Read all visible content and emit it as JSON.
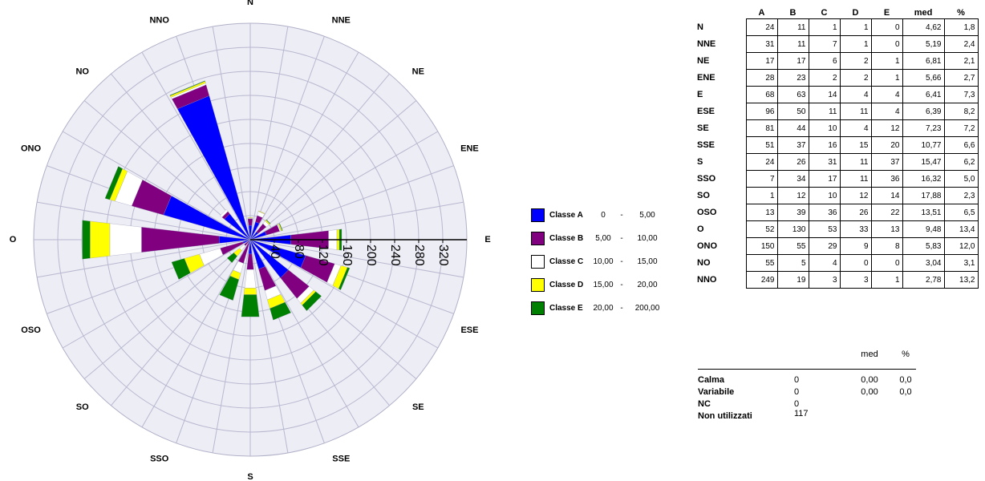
{
  "chart_data": {
    "type": "wind-rose",
    "directions": [
      "N",
      "NNE",
      "NE",
      "ENE",
      "E",
      "ESE",
      "SE",
      "SSE",
      "S",
      "SSO",
      "SO",
      "OSO",
      "O",
      "ONO",
      "NO",
      "NNO"
    ],
    "radial_ticks": [
      "40",
      "80",
      "120",
      "160",
      "200",
      "240",
      "280",
      "320"
    ],
    "radial_range": [
      0,
      360
    ],
    "grid": true,
    "series": [
      {
        "name": "Classe A",
        "color": "#0000ff",
        "values": [
          24,
          31,
          17,
          28,
          68,
          96,
          81,
          51,
          24,
          7,
          1,
          13,
          52,
          150,
          55,
          249
        ]
      },
      {
        "name": "Classe B",
        "color": "#800080",
        "values": [
          11,
          11,
          17,
          23,
          63,
          50,
          44,
          37,
          26,
          34,
          12,
          39,
          130,
          55,
          5,
          19
        ]
      },
      {
        "name": "Classe C",
        "color": "#ffffff",
        "values": [
          1,
          7,
          6,
          2,
          14,
          11,
          10,
          16,
          31,
          17,
          10,
          36,
          53,
          29,
          4,
          3
        ]
      },
      {
        "name": "Classe D",
        "color": "#ffff00",
        "values": [
          1,
          1,
          2,
          2,
          4,
          11,
          4,
          15,
          11,
          11,
          12,
          26,
          33,
          9,
          0,
          3
        ]
      },
      {
        "name": "Classe E",
        "color": "#008000",
        "values": [
          0,
          0,
          1,
          1,
          4,
          4,
          12,
          20,
          37,
          36,
          14,
          22,
          13,
          8,
          0,
          1
        ]
      }
    ]
  },
  "legend": [
    {
      "label": "Classe A",
      "min": "0",
      "max": "5,00",
      "color": "#0000ff"
    },
    {
      "label": "Classe B",
      "min": "5,00",
      "max": "10,00",
      "color": "#800080"
    },
    {
      "label": "Classe C",
      "min": "10,00",
      "max": "15,00",
      "color": "#ffffff"
    },
    {
      "label": "Classe D",
      "min": "15,00",
      "max": "20,00",
      "color": "#ffff00"
    },
    {
      "label": "Classe E",
      "min": "20,00",
      "max": "200,00",
      "color": "#008000"
    }
  ],
  "legend_dash": "-",
  "table": {
    "headers": [
      "A",
      "B",
      "C",
      "D",
      "E",
      "med",
      "%"
    ],
    "rows": [
      {
        "dir": "N",
        "A": "24",
        "B": "11",
        "C": "1",
        "D": "1",
        "E": "0",
        "med": "4,62",
        "pct": "1,8"
      },
      {
        "dir": "NNE",
        "A": "31",
        "B": "11",
        "C": "7",
        "D": "1",
        "E": "0",
        "med": "5,19",
        "pct": "2,4"
      },
      {
        "dir": "NE",
        "A": "17",
        "B": "17",
        "C": "6",
        "D": "2",
        "E": "1",
        "med": "6,81",
        "pct": "2,1"
      },
      {
        "dir": "ENE",
        "A": "28",
        "B": "23",
        "C": "2",
        "D": "2",
        "E": "1",
        "med": "5,66",
        "pct": "2,7"
      },
      {
        "dir": "E",
        "A": "68",
        "B": "63",
        "C": "14",
        "D": "4",
        "E": "4",
        "med": "6,41",
        "pct": "7,3"
      },
      {
        "dir": "ESE",
        "A": "96",
        "B": "50",
        "C": "11",
        "D": "11",
        "E": "4",
        "med": "6,39",
        "pct": "8,2"
      },
      {
        "dir": "SE",
        "A": "81",
        "B": "44",
        "C": "10",
        "D": "4",
        "E": "12",
        "med": "7,23",
        "pct": "7,2"
      },
      {
        "dir": "SSE",
        "A": "51",
        "B": "37",
        "C": "16",
        "D": "15",
        "E": "20",
        "med": "10,77",
        "pct": "6,6"
      },
      {
        "dir": "S",
        "A": "24",
        "B": "26",
        "C": "31",
        "D": "11",
        "E": "37",
        "med": "15,47",
        "pct": "6,2"
      },
      {
        "dir": "SSO",
        "A": "7",
        "B": "34",
        "C": "17",
        "D": "11",
        "E": "36",
        "med": "16,32",
        "pct": "5,0"
      },
      {
        "dir": "SO",
        "A": "1",
        "B": "12",
        "C": "10",
        "D": "12",
        "E": "14",
        "med": "17,88",
        "pct": "2,3"
      },
      {
        "dir": "OSO",
        "A": "13",
        "B": "39",
        "C": "36",
        "D": "26",
        "E": "22",
        "med": "13,51",
        "pct": "6,5"
      },
      {
        "dir": "O",
        "A": "52",
        "B": "130",
        "C": "53",
        "D": "33",
        "E": "13",
        "med": "9,48",
        "pct": "13,4"
      },
      {
        "dir": "ONO",
        "A": "150",
        "B": "55",
        "C": "29",
        "D": "9",
        "E": "8",
        "med": "5,83",
        "pct": "12,0"
      },
      {
        "dir": "NO",
        "A": "55",
        "B": "5",
        "C": "4",
        "D": "0",
        "E": "0",
        "med": "3,04",
        "pct": "3,1"
      },
      {
        "dir": "NNO",
        "A": "249",
        "B": "19",
        "C": "3",
        "D": "3",
        "E": "1",
        "med": "2,78",
        "pct": "13,2"
      }
    ]
  },
  "summary": {
    "headers": {
      "med": "med",
      "pct": "%"
    },
    "rows": [
      {
        "label": "Calma",
        "count": "0",
        "med": "0,00",
        "pct": "0,0"
      },
      {
        "label": "Variabile",
        "count": "0",
        "med": "0,00",
        "pct": "0,0"
      },
      {
        "label": "NC",
        "count": "0",
        "med": "",
        "pct": ""
      },
      {
        "label": "Non utilizzati",
        "count": "117",
        "med": "",
        "pct": ""
      }
    ]
  }
}
